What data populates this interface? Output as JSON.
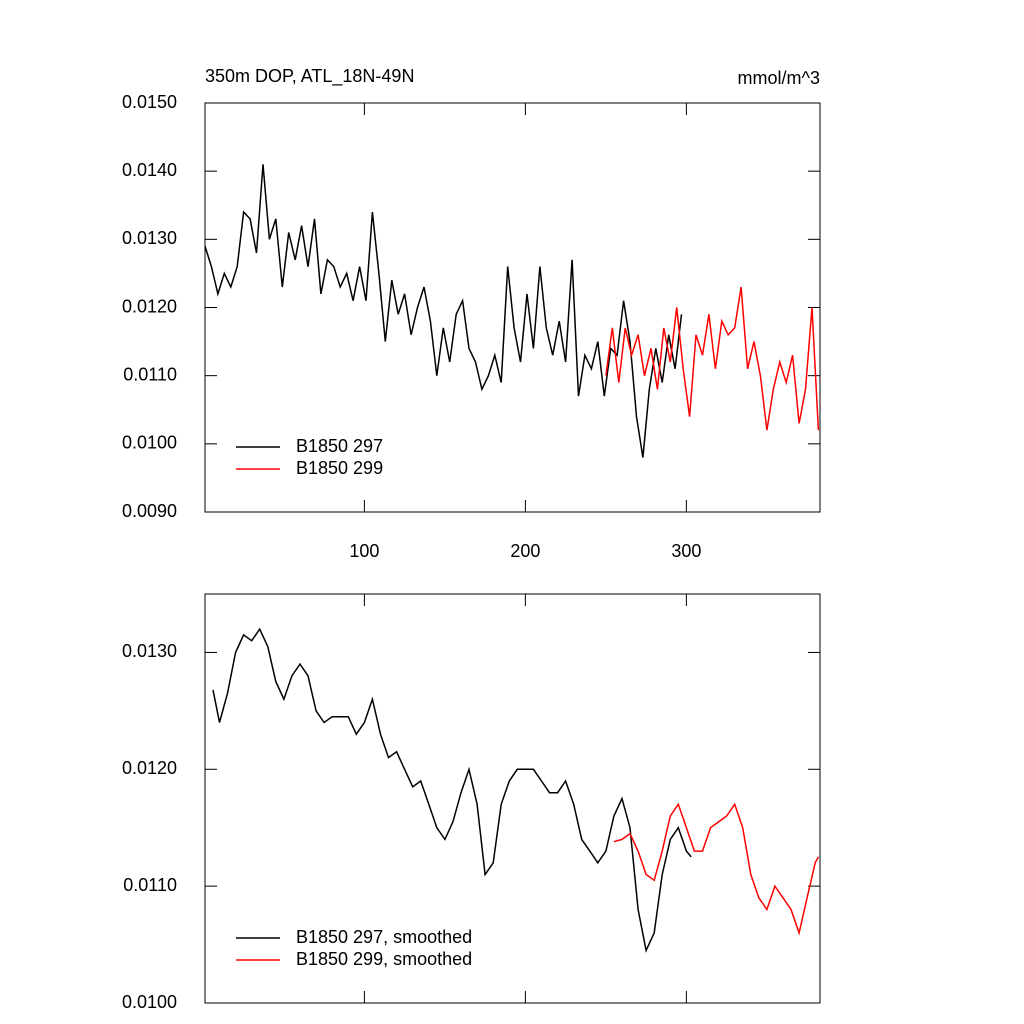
{
  "chart_data": [
    {
      "type": "line",
      "title": "350m DOP, ATL_18N-49N",
      "units": "mmol/m^3",
      "xlim": [
        1,
        383
      ],
      "xticks": [
        100,
        200,
        300
      ],
      "show_xtick_labels": true,
      "ylim": [
        0.009,
        0.015
      ],
      "yticks": [
        {
          "value": 0.009,
          "label": "0.0090"
        },
        {
          "value": 0.01,
          "label": "0.0100"
        },
        {
          "value": 0.011,
          "label": "0.0110"
        },
        {
          "value": 0.012,
          "label": "0.0120"
        },
        {
          "value": 0.013,
          "label": "0.0130"
        },
        {
          "value": 0.014,
          "label": "0.0140"
        },
        {
          "value": 0.015,
          "label": "0.0150"
        }
      ],
      "legend": "lower left",
      "series": [
        {
          "name": "B1850 297",
          "color": "#000000",
          "x": [
            1,
            5,
            9,
            13,
            17,
            21,
            25,
            29,
            33,
            37,
            41,
            45,
            49,
            53,
            57,
            61,
            65,
            69,
            73,
            77,
            81,
            85,
            89,
            93,
            97,
            101,
            105,
            109,
            113,
            117,
            121,
            125,
            129,
            133,
            137,
            141,
            145,
            149,
            153,
            157,
            161,
            165,
            169,
            173,
            177,
            181,
            185,
            189,
            193,
            197,
            201,
            205,
            209,
            213,
            217,
            221,
            225,
            229,
            233,
            237,
            241,
            245,
            249,
            253,
            257,
            261,
            265,
            269,
            273,
            277,
            281,
            285,
            289,
            293,
            297
          ],
          "values": [
            0.0129,
            0.0126,
            0.0122,
            0.0125,
            0.0123,
            0.0126,
            0.0134,
            0.0133,
            0.0128,
            0.0141,
            0.013,
            0.0133,
            0.0123,
            0.0131,
            0.0127,
            0.0132,
            0.0126,
            0.0133,
            0.0122,
            0.0127,
            0.0126,
            0.0123,
            0.0125,
            0.0121,
            0.0126,
            0.0121,
            0.0134,
            0.0125,
            0.0115,
            0.0124,
            0.0119,
            0.0122,
            0.0116,
            0.012,
            0.0123,
            0.0118,
            0.011,
            0.0117,
            0.0112,
            0.0119,
            0.0121,
            0.0114,
            0.0112,
            0.0108,
            0.011,
            0.0113,
            0.0109,
            0.0126,
            0.0117,
            0.0112,
            0.0122,
            0.0114,
            0.0126,
            0.0117,
            0.0113,
            0.0118,
            0.0112,
            0.0127,
            0.0107,
            0.0113,
            0.0111,
            0.0115,
            0.0107,
            0.0114,
            0.0113,
            0.0121,
            0.0115,
            0.0104,
            0.0098,
            0.0108,
            0.0114,
            0.0109,
            0.0116,
            0.0111,
            0.0119
          ]
        },
        {
          "name": "B1850 299",
          "color": "#ff0000",
          "x": [
            250,
            254,
            258,
            262,
            266,
            270,
            274,
            278,
            282,
            286,
            290,
            294,
            298,
            302,
            306,
            310,
            314,
            318,
            322,
            326,
            330,
            334,
            338,
            342,
            346,
            350,
            354,
            358,
            362,
            366,
            370,
            374,
            378,
            382
          ],
          "values": [
            0.011,
            0.0117,
            0.0109,
            0.0117,
            0.0113,
            0.0116,
            0.011,
            0.0114,
            0.0108,
            0.0117,
            0.0112,
            0.012,
            0.0111,
            0.0104,
            0.0116,
            0.0113,
            0.0119,
            0.0111,
            0.0118,
            0.0116,
            0.0117,
            0.0123,
            0.0111,
            0.0115,
            0.011,
            0.0102,
            0.0108,
            0.0112,
            0.0109,
            0.0113,
            0.0103,
            0.0108,
            0.012,
            0.0102
          ]
        }
      ]
    },
    {
      "type": "line",
      "xlim": [
        1,
        383
      ],
      "xticks": [
        100,
        200,
        300
      ],
      "show_xtick_labels": false,
      "ylim": [
        0.01,
        0.0135
      ],
      "yticks": [
        {
          "value": 0.01,
          "label": "0.0100"
        },
        {
          "value": 0.011,
          "label": "0.0110"
        },
        {
          "value": 0.012,
          "label": "0.0120"
        },
        {
          "value": 0.013,
          "label": "0.0130"
        }
      ],
      "legend": "lower left",
      "series": [
        {
          "name": "B1850 297, smoothed",
          "color": "#000000",
          "x": [
            6,
            10,
            15,
            20,
            25,
            30,
            35,
            40,
            45,
            50,
            55,
            60,
            65,
            70,
            75,
            80,
            85,
            90,
            95,
            100,
            105,
            110,
            115,
            120,
            125,
            130,
            135,
            140,
            145,
            150,
            155,
            160,
            165,
            170,
            175,
            180,
            185,
            190,
            195,
            200,
            205,
            210,
            215,
            220,
            225,
            230,
            235,
            240,
            245,
            250,
            255,
            260,
            265,
            270,
            275,
            280,
            285,
            290,
            295,
            300,
            303
          ],
          "values": [
            0.01268,
            0.0124,
            0.01265,
            0.013,
            0.01315,
            0.0131,
            0.0132,
            0.01305,
            0.01275,
            0.0126,
            0.0128,
            0.0129,
            0.0128,
            0.0125,
            0.0124,
            0.01245,
            0.01245,
            0.01245,
            0.0123,
            0.0124,
            0.0126,
            0.0123,
            0.0121,
            0.01215,
            0.012,
            0.01185,
            0.0119,
            0.0117,
            0.0115,
            0.0114,
            0.01155,
            0.0118,
            0.012,
            0.0117,
            0.0111,
            0.0112,
            0.0117,
            0.0119,
            0.012,
            0.012,
            0.012,
            0.0119,
            0.0118,
            0.0118,
            0.0119,
            0.0117,
            0.0114,
            0.0113,
            0.0112,
            0.0113,
            0.0116,
            0.01175,
            0.0115,
            0.0108,
            0.01045,
            0.0106,
            0.0111,
            0.0114,
            0.0115,
            0.0113,
            0.01125
          ]
        },
        {
          "name": "B1850 299, smoothed",
          "color": "#ff0000",
          "x": [
            255,
            260,
            265,
            270,
            275,
            280,
            285,
            290,
            295,
            300,
            305,
            310,
            315,
            320,
            325,
            330,
            335,
            340,
            345,
            350,
            355,
            360,
            365,
            370,
            375,
            380,
            382
          ],
          "values": [
            0.01138,
            0.0114,
            0.01145,
            0.0113,
            0.0111,
            0.01105,
            0.0113,
            0.0116,
            0.0117,
            0.0115,
            0.0113,
            0.0113,
            0.0115,
            0.01155,
            0.0116,
            0.0117,
            0.0115,
            0.0111,
            0.0109,
            0.0108,
            0.011,
            0.0109,
            0.0108,
            0.0106,
            0.0109,
            0.0112,
            0.01125
          ]
        }
      ]
    }
  ]
}
